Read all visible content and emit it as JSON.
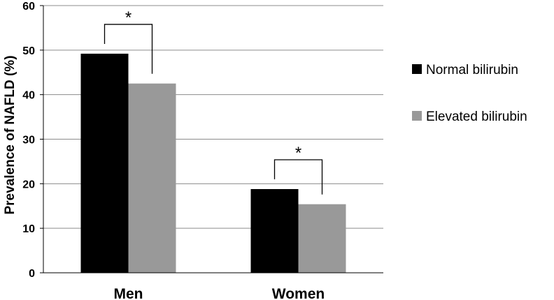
{
  "chart_data": {
    "type": "bar",
    "categories": [
      "Men",
      "Women"
    ],
    "series": [
      {
        "name": "Normal bilirubin",
        "values": [
          49.2,
          18.8
        ],
        "color": "#000000"
      },
      {
        "name": "Elevated bilirubin",
        "values": [
          42.5,
          15.4
        ],
        "color": "#999999"
      }
    ],
    "ylabel": "Prevalence of NAFLD (%)",
    "xlabel": "",
    "ylim": [
      0,
      60
    ],
    "yticks": [
      0,
      10,
      20,
      30,
      40,
      50,
      60
    ],
    "grid": true,
    "legend_position": "right",
    "significance_marker": "*",
    "significance": [
      {
        "category": "Men",
        "label": "*"
      },
      {
        "category": "Women",
        "label": "*"
      }
    ]
  }
}
